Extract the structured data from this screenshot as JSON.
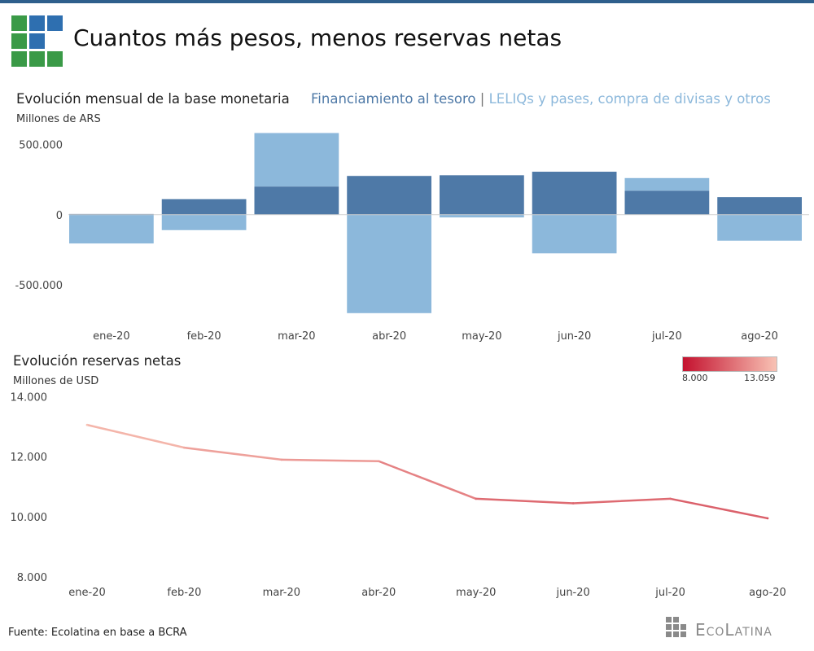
{
  "header": {
    "title": "Cuantos más pesos, menos reservas netas"
  },
  "chart1_header": {
    "subtitle": "Evolución mensual de la base monetaria",
    "units": "Millones de ARS",
    "legend_a": "Financiamiento al tesoro",
    "legend_sep": " | ",
    "legend_b": "LELIQs y pases, compra de divisas y otros"
  },
  "chart2_header": {
    "subtitle": "Evolución reservas netas",
    "units": "Millones de USD",
    "scale_min": "8.000",
    "scale_max": "13.059"
  },
  "footer": {
    "source": "Fuente: Ecolatina en base a BCRA",
    "brand": "EcoLatina"
  },
  "colors": {
    "financiamiento": "#4e79a7",
    "leliqs": "#8cb8db",
    "line_low": "#c4122f",
    "line_high": "#f8c2b4",
    "brand_blue": "#2e5f8c",
    "brand_green": "#3a9a47"
  },
  "chart_data": [
    {
      "type": "bar",
      "stacked": true,
      "title": "Evolución mensual de la base monetaria",
      "ylabel": "Millones de ARS",
      "categories": [
        "ene-20",
        "feb-20",
        "mar-20",
        "abr-20",
        "may-20",
        "jun-20",
        "jul-20",
        "ago-20"
      ],
      "series": [
        {
          "name": "Financiamiento al tesoro",
          "values": [
            5000,
            110000,
            200000,
            275000,
            280000,
            305000,
            170000,
            125000
          ]
        },
        {
          "name": "LELIQs y pases, compra de divisas y otros",
          "values": [
            -205000,
            -110000,
            380000,
            -700000,
            -20000,
            -275000,
            90000,
            -185000
          ]
        }
      ],
      "ylim": [
        -730000,
        600000
      ],
      "yticks": [
        500000,
        0,
        -500000
      ],
      "ytick_labels": [
        "500.000",
        "0",
        "-500.000"
      ],
      "grid": false
    },
    {
      "type": "line",
      "title": "Evolución reservas netas",
      "ylabel": "Millones de USD",
      "categories": [
        "ene-20",
        "feb-20",
        "mar-20",
        "abr-20",
        "may-20",
        "jun-20",
        "jul-20",
        "ago-20"
      ],
      "values": [
        13059,
        12300,
        11900,
        11850,
        10600,
        10450,
        10600,
        9950
      ],
      "ylim": [
        7700,
        14200
      ],
      "yticks": [
        14000,
        12000,
        10000,
        8000
      ],
      "ytick_labels": [
        "14.000",
        "12.000",
        "10.000",
        "8.000"
      ],
      "color_scale": {
        "min": 8000,
        "max": 13059
      },
      "grid": false
    }
  ]
}
